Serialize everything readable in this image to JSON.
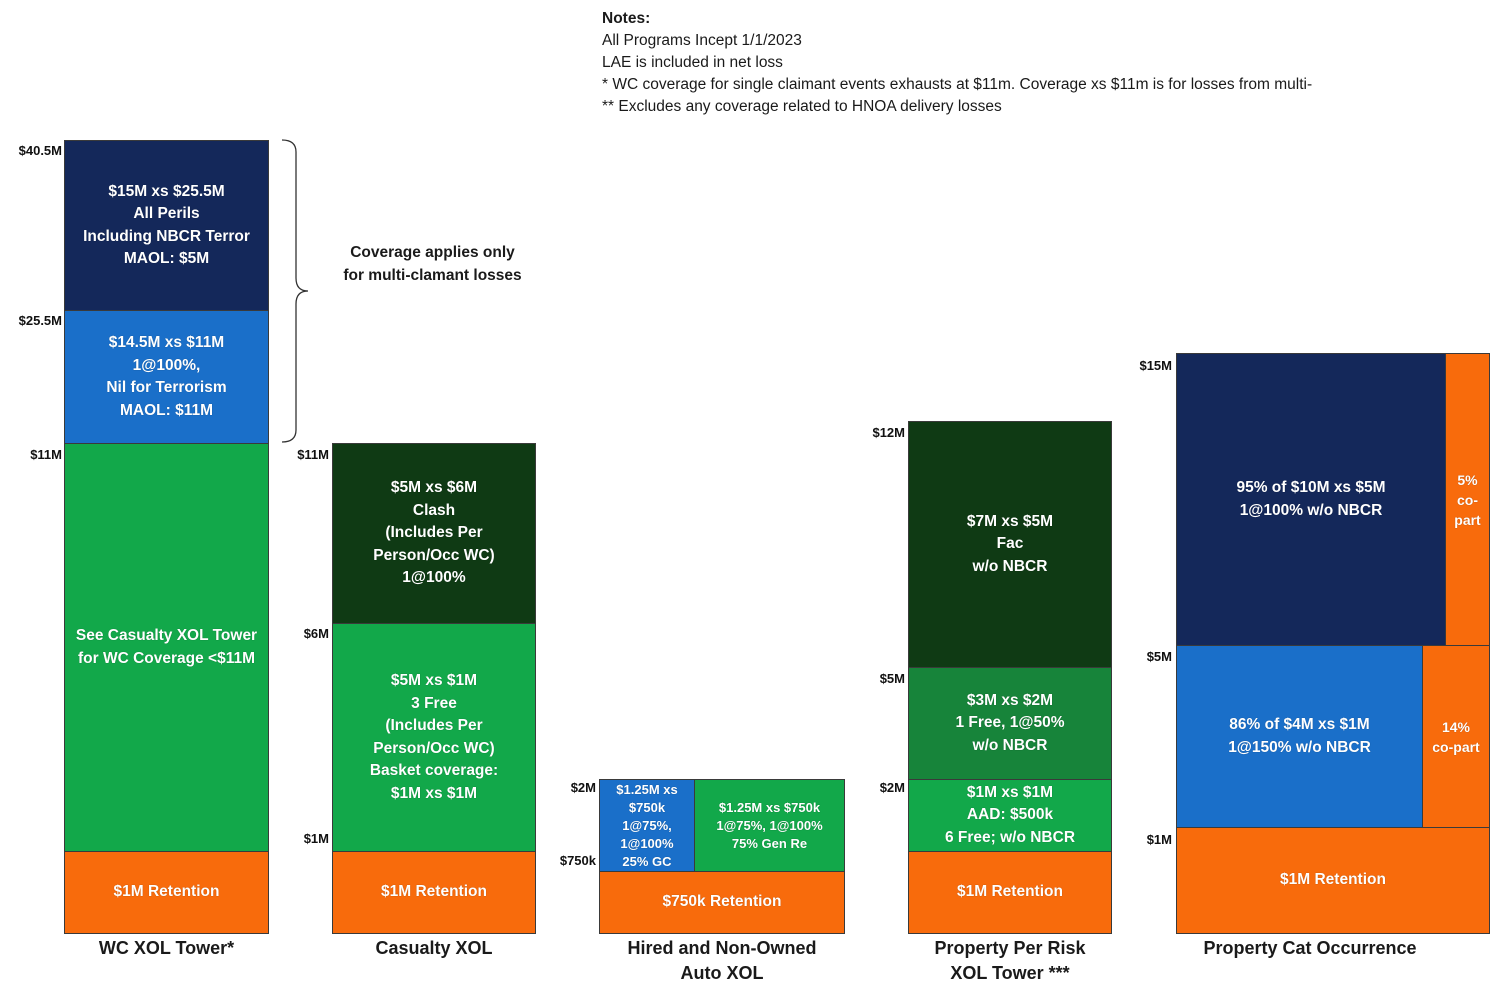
{
  "notes": {
    "heading": "Notes:",
    "lines": [
      "All Programs Incept 1/1/2023",
      "LAE is included in net loss",
      "* WC coverage for single claimant events exhausts at $11m. Coverage xs $11m is for losses from multi-",
      "** Excludes any coverage related to HNOA delivery losses"
    ]
  },
  "wc": {
    "title": "WC XOL Tower*",
    "axis": [
      "$40.5M",
      "$25.5M",
      "$11M"
    ],
    "layers": [
      "$15M xs $25.5M\nAll Perils\nIncluding NBCR Terror\nMAOL: $5M",
      "$14.5M xs $11M\n1@100%,\nNil for Terrorism\nMAOL: $11M",
      "See Casualty XOL Tower\nfor WC Coverage <$11M",
      "$1M Retention"
    ],
    "brace_note": "Coverage applies only\nfor multi-clamant losses"
  },
  "casualty": {
    "title": "Casualty XOL",
    "axis": [
      "$11M",
      "$6M",
      "$1M"
    ],
    "layers": [
      "$5M xs $6M\nClash\n(Includes Per\nPerson/Occ WC)\n1@100%",
      "$5M xs $1M\n3 Free\n(Includes Per\nPerson/Occ WC)\nBasket coverage:\n$1M xs $1M",
      "$1M Retention"
    ]
  },
  "hnoa": {
    "title": "Hired and Non-Owned\nAuto XOL",
    "axis": [
      "$2M",
      "$750k"
    ],
    "layers": [
      "$1.25M xs\n$750k\n1@75%,\n1@100%\n25% GC",
      "$1.25M xs $750k\n1@75%, 1@100%\n75% Gen Re",
      "$750k Retention"
    ]
  },
  "prop_risk": {
    "title": "Property Per Risk\nXOL Tower ***",
    "axis": [
      "$12M",
      "$5M",
      "$2M"
    ],
    "layers": [
      "$7M xs $5M\nFac\nw/o NBCR",
      "$3M xs $2M\n1 Free, 1@50%\nw/o NBCR",
      "$1M xs $1M\nAAD: $500k\n6 Free; w/o NBCR",
      "$1M Retention"
    ]
  },
  "prop_cat": {
    "title": "Property Cat Occurrence",
    "axis": [
      "$15M",
      "$5M",
      "$1M"
    ],
    "layers": [
      "95% of $10M xs $5M\n1@100% w/o NBCR",
      "5%\nco-\npart",
      "86% of $4M xs $1M\n1@150% w/o NBCR",
      "14%\nco-part",
      "$1M Retention"
    ]
  },
  "colors": {
    "navy": "#14285a",
    "blue": "#1a6fc9",
    "green": "#12a84a",
    "dark_green": "#0f3a14",
    "mid_green": "#17843a",
    "orange": "#f86b0c"
  }
}
